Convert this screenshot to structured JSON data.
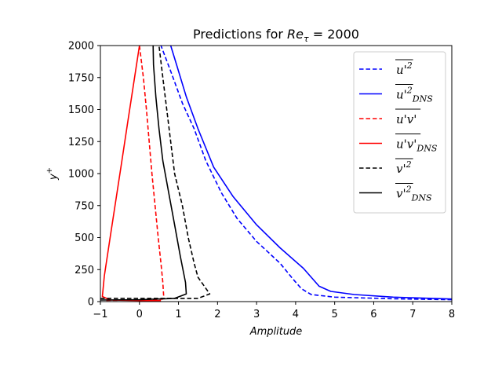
{
  "chart_data": {
    "type": "line",
    "title_prefix": "Predictions for ",
    "title_symbol": "Re",
    "title_sub": "τ",
    "title_suffix": " = 2000",
    "xlabel": "Amplitude",
    "ylabel_main": "y",
    "ylabel_sup": "+",
    "xlim": [
      -1,
      8
    ],
    "ylim": [
      0,
      2000
    ],
    "xticks": [
      "−1",
      "0",
      "1",
      "2",
      "3",
      "4",
      "5",
      "6",
      "7",
      "8"
    ],
    "xtick_values": [
      -1,
      0,
      1,
      2,
      3,
      4,
      5,
      6,
      7,
      8
    ],
    "yticks": [
      "0",
      "250",
      "500",
      "750",
      "1000",
      "1250",
      "1500",
      "1750",
      "2000"
    ],
    "ytick_values": [
      0,
      250,
      500,
      750,
      1000,
      1250,
      1500,
      1750,
      2000
    ],
    "legend_placement": "top-right",
    "series": [
      {
        "legend_base": "u'",
        "legend_sup": "2",
        "legend_sub": "",
        "color": "#0000ff",
        "dashed": true,
        "points": [
          [
            8.0,
            15
          ],
          [
            6.5,
            22
          ],
          [
            5.0,
            35
          ],
          [
            4.4,
            55
          ],
          [
            4.15,
            100
          ],
          [
            3.95,
            170
          ],
          [
            3.6,
            300
          ],
          [
            3.0,
            470
          ],
          [
            2.5,
            650
          ],
          [
            2.1,
            850
          ],
          [
            1.7,
            1100
          ],
          [
            1.4,
            1350
          ],
          [
            1.1,
            1550
          ],
          [
            0.8,
            1800
          ],
          [
            0.55,
            2000
          ]
        ]
      },
      {
        "legend_base": "u'",
        "legend_sup": "2",
        "legend_sub": "DNS",
        "color": "#0000ff",
        "dashed": false,
        "points": [
          [
            8.0,
            20
          ],
          [
            6.5,
            35
          ],
          [
            5.5,
            55
          ],
          [
            4.9,
            80
          ],
          [
            4.6,
            120
          ],
          [
            4.2,
            260
          ],
          [
            3.6,
            420
          ],
          [
            3.0,
            600
          ],
          [
            2.4,
            820
          ],
          [
            1.9,
            1050
          ],
          [
            1.5,
            1350
          ],
          [
            1.2,
            1600
          ],
          [
            0.95,
            1850
          ],
          [
            0.8,
            2000
          ]
        ]
      },
      {
        "legend_base": "u'v'",
        "legend_sup": "",
        "legend_sub": "",
        "color": "#ff0000",
        "dashed": true,
        "points": [
          [
            -0.85,
            10
          ],
          [
            0.0,
            12
          ],
          [
            0.45,
            15
          ],
          [
            0.6,
            20
          ],
          [
            0.62,
            50
          ],
          [
            0.6,
            150
          ],
          [
            0.55,
            300
          ],
          [
            0.48,
            500
          ],
          [
            0.4,
            750
          ],
          [
            0.32,
            1000
          ],
          [
            0.25,
            1250
          ],
          [
            0.18,
            1500
          ],
          [
            0.1,
            1750
          ],
          [
            0.0,
            2000
          ]
        ]
      },
      {
        "legend_base": "u'v'",
        "legend_sup": "",
        "legend_sub": "DNS",
        "color": "#ff0000",
        "dashed": false,
        "points": [
          [
            0.55,
            8
          ],
          [
            0.0,
            8
          ],
          [
            -0.75,
            12
          ],
          [
            -0.95,
            40
          ],
          [
            -0.9,
            200
          ],
          [
            -0.75,
            500
          ],
          [
            -0.6,
            800
          ],
          [
            -0.45,
            1100
          ],
          [
            -0.3,
            1400
          ],
          [
            -0.15,
            1700
          ],
          [
            0.0,
            2000
          ]
        ]
      },
      {
        "legend_base": "v'",
        "legend_sup": "2",
        "legend_sub": "",
        "color": "#000000",
        "dashed": true,
        "points": [
          [
            -1.0,
            25
          ],
          [
            0.0,
            25
          ],
          [
            1.5,
            25
          ],
          [
            1.8,
            60
          ],
          [
            1.5,
            190
          ],
          [
            1.4,
            300
          ],
          [
            1.25,
            500
          ],
          [
            1.1,
            750
          ],
          [
            0.9,
            1000
          ],
          [
            0.8,
            1250
          ],
          [
            0.7,
            1500
          ],
          [
            0.6,
            1750
          ],
          [
            0.5,
            2000
          ]
        ]
      },
      {
        "legend_base": "v'",
        "legend_sup": "2",
        "legend_sub": "DNS",
        "color": "#000000",
        "dashed": false,
        "points": [
          [
            -1.0,
            12
          ],
          [
            0.0,
            15
          ],
          [
            0.9,
            25
          ],
          [
            1.2,
            60
          ],
          [
            1.18,
            150
          ],
          [
            1.05,
            350
          ],
          [
            0.9,
            600
          ],
          [
            0.75,
            850
          ],
          [
            0.6,
            1100
          ],
          [
            0.5,
            1350
          ],
          [
            0.42,
            1600
          ],
          [
            0.36,
            1850
          ],
          [
            0.35,
            2000
          ]
        ]
      }
    ]
  }
}
